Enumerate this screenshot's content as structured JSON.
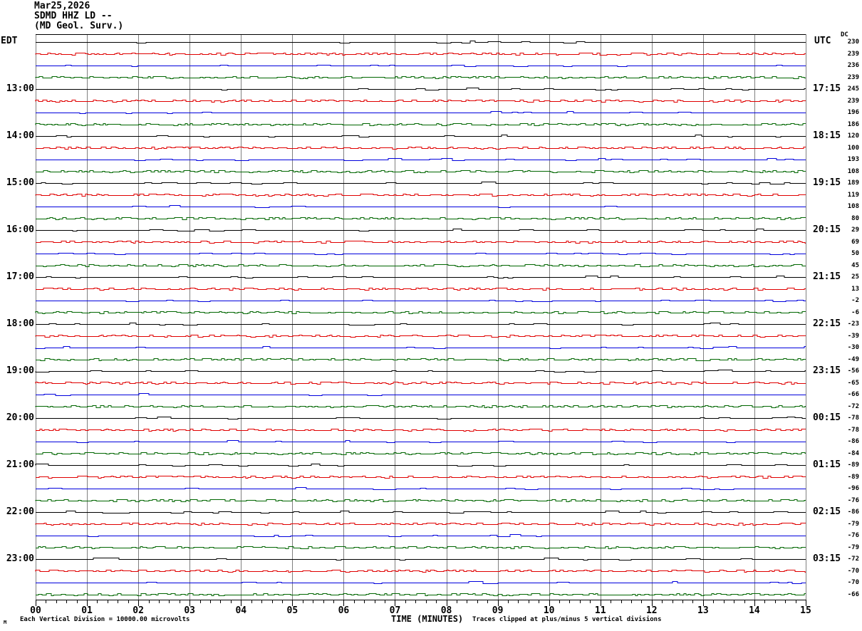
{
  "header": {
    "date": "Mar25,2026",
    "station": "SDMD HHZ LD --",
    "org": "(MD Geol. Surv.)",
    "left_tz": "EDT",
    "right_tz": "UTC",
    "dc_label": "DC"
  },
  "footer": {
    "xaxis_title": "TIME (MINUTES)",
    "left_note": "Each Vertical Division = 10000.00 microvolts",
    "right_note": "Traces clipped at plus/minus 5 vertical divisions",
    "watermark": "M"
  },
  "x_axis": {
    "labels": [
      "00",
      "01",
      "02",
      "03",
      "04",
      "05",
      "06",
      "07",
      "08",
      "09",
      "10",
      "11",
      "12",
      "13",
      "14",
      "15"
    ],
    "minutes_per_line": 15,
    "minor_ticks_per_minute": 5
  },
  "left_time_labels": [
    {
      "row": 4,
      "label": "13:00"
    },
    {
      "row": 8,
      "label": "14:00"
    },
    {
      "row": 12,
      "label": "15:00"
    },
    {
      "row": 16,
      "label": "16:00"
    },
    {
      "row": 20,
      "label": "17:00"
    },
    {
      "row": 24,
      "label": "18:00"
    },
    {
      "row": 28,
      "label": "19:00"
    },
    {
      "row": 32,
      "label": "20:00"
    },
    {
      "row": 36,
      "label": "21:00"
    },
    {
      "row": 40,
      "label": "22:00"
    },
    {
      "row": 44,
      "label": "23:00"
    }
  ],
  "right_time_labels": [
    {
      "row": 4,
      "label": "17:15"
    },
    {
      "row": 8,
      "label": "18:15"
    },
    {
      "row": 12,
      "label": "19:15"
    },
    {
      "row": 16,
      "label": "20:15"
    },
    {
      "row": 20,
      "label": "21:15"
    },
    {
      "row": 24,
      "label": "22:15"
    },
    {
      "row": 28,
      "label": "23:15"
    },
    {
      "row": 32,
      "label": "00:15"
    },
    {
      "row": 36,
      "label": "01:15"
    },
    {
      "row": 40,
      "label": "02:15"
    },
    {
      "row": 44,
      "label": "03:15"
    }
  ],
  "colors": {
    "trace_cycle": [
      "#000000",
      "#e00000",
      "#0000dd",
      "#006600"
    ],
    "grid": "#808080",
    "border": "#000000",
    "background": "#ffffff"
  },
  "chart_data": {
    "type": "line",
    "subtype": "helicorder-seismogram",
    "title": "SDMD HHZ LD -- Mar25,2026 (MD Geol. Surv.)",
    "xlabel": "TIME (MINUTES)",
    "x_range": [
      0,
      15
    ],
    "x_ticks": [
      "00",
      "01",
      "02",
      "03",
      "04",
      "05",
      "06",
      "07",
      "08",
      "09",
      "10",
      "11",
      "12",
      "13",
      "14",
      "15"
    ],
    "row_count": 48,
    "minutes_per_row": 15,
    "color_cycle": [
      "black",
      "red",
      "blue",
      "green"
    ],
    "row_start_times_edt": [
      "12:00",
      "12:15",
      "12:30",
      "12:45",
      "13:00",
      "13:15",
      "13:30",
      "13:45",
      "14:00",
      "14:15",
      "14:30",
      "14:45",
      "15:00",
      "15:15",
      "15:30",
      "15:45",
      "16:00",
      "16:15",
      "16:30",
      "16:45",
      "17:00",
      "17:15",
      "17:30",
      "17:45",
      "18:00",
      "18:15",
      "18:30",
      "18:45",
      "19:00",
      "19:15",
      "19:30",
      "19:45",
      "20:00",
      "20:15",
      "20:30",
      "20:45",
      "21:00",
      "21:15",
      "21:30",
      "21:45",
      "22:00",
      "22:15",
      "22:30",
      "22:45",
      "23:00",
      "23:15",
      "23:30",
      "23:45"
    ],
    "dc_offsets": [
      230,
      239,
      236,
      239,
      245,
      239,
      196,
      186,
      120,
      100,
      193,
      108,
      189,
      119,
      108,
      80,
      29,
      69,
      50,
      45,
      25,
      13,
      -2,
      -6,
      -23,
      -39,
      -30,
      -49,
      -56,
      -65,
      -66,
      -72,
      -78,
      -78,
      -86,
      -84,
      -89,
      -89,
      -96,
      -76,
      -86,
      -79,
      -76,
      -79,
      -72,
      -70,
      -70,
      -66
    ],
    "amplitude_note": "All traces quiescent background noise, no significant events; traces clipped at plus/minus 5 vertical divisions; each vertical division = 10000.00 microvolts"
  }
}
